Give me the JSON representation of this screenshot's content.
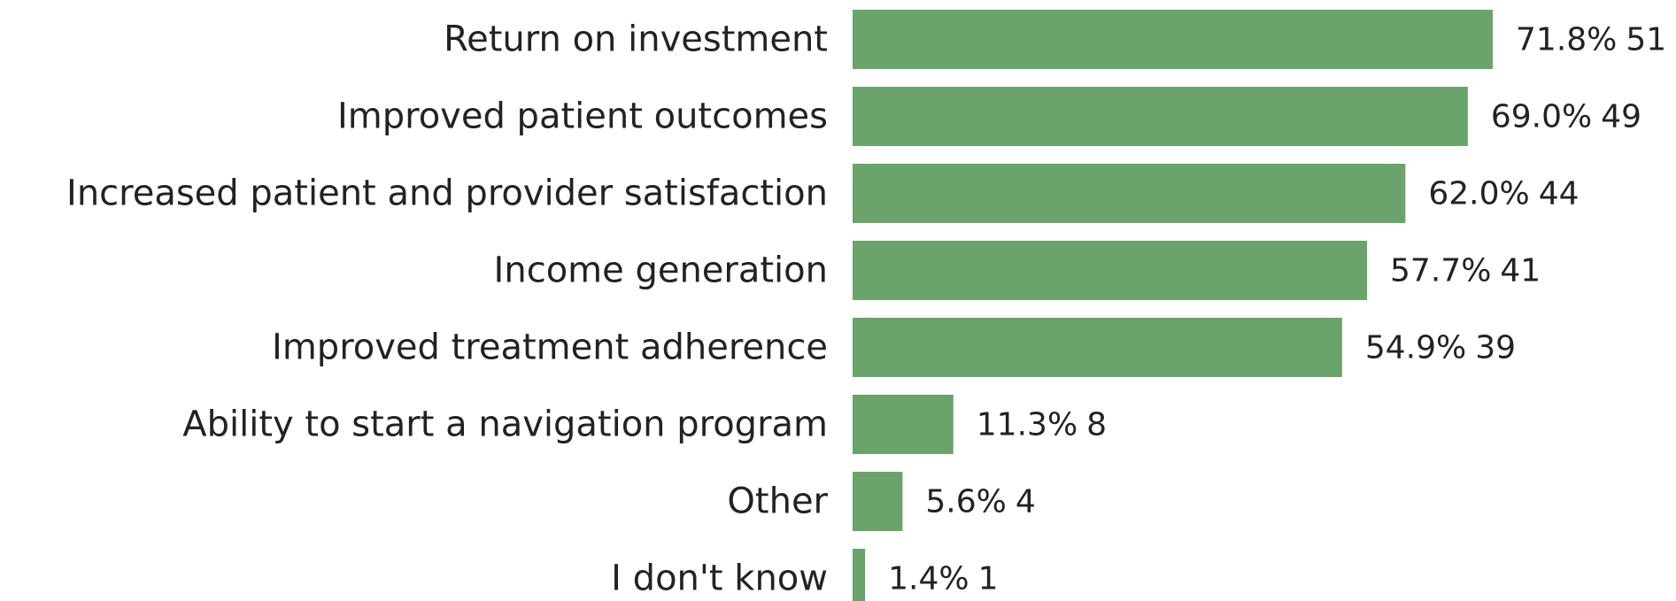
{
  "chart_data": {
    "type": "bar",
    "orientation": "horizontal",
    "categories": [
      "Return on investment",
      "Improved patient outcomes",
      "Increased patient and provider satisfaction",
      "Income generation",
      "Improved treatment adherence",
      "Ability to start a navigation program",
      "Other",
      "I don't know"
    ],
    "values": [
      71.8,
      69.0,
      62.0,
      57.7,
      54.9,
      11.3,
      5.6,
      1.4
    ],
    "value_labels": [
      "71.8%",
      "69.0%",
      "62.0%",
      "57.7%",
      "54.9%",
      "11.3%",
      "5.6%",
      "1.4%"
    ],
    "counts": [
      51,
      49,
      44,
      41,
      39,
      8,
      4,
      1
    ],
    "color": "#6aa36c",
    "xlim": [
      0,
      100
    ]
  }
}
